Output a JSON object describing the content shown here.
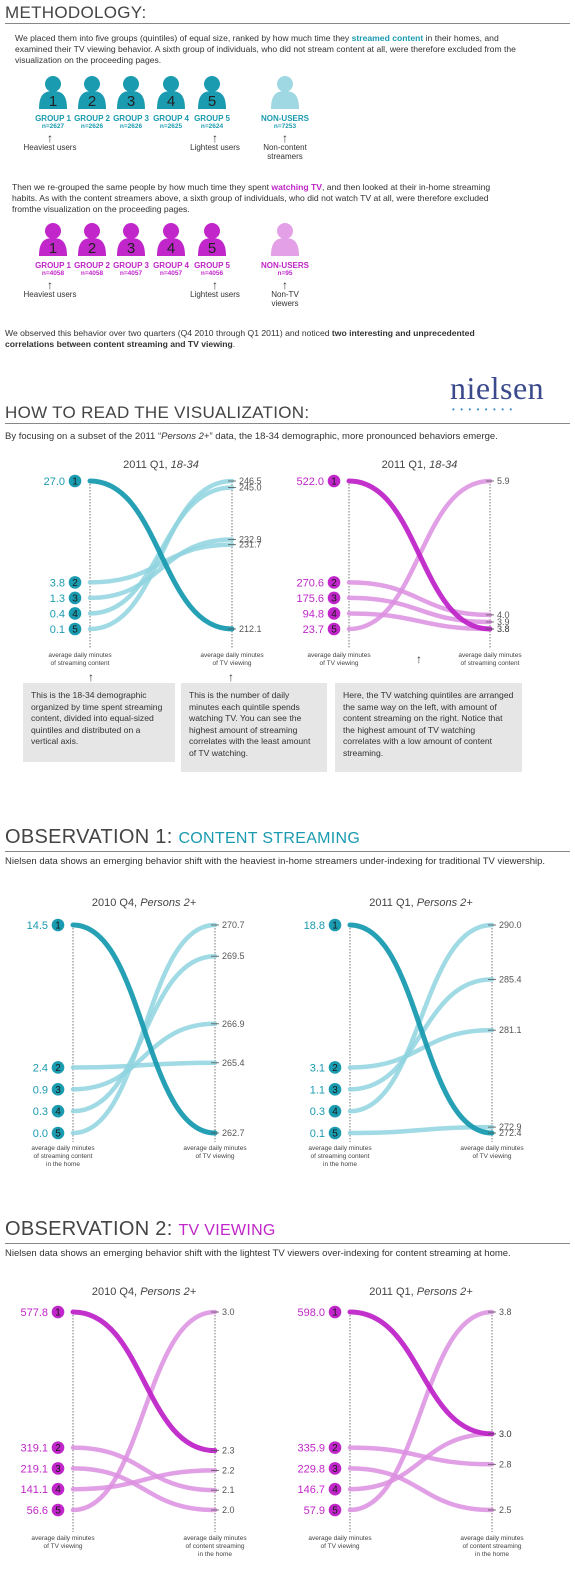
{
  "methodology": {
    "heading": "METHODOLOGY:",
    "para1_a": "We placed them into five groups (quintiles) of equal size, ranked by how much time they ",
    "para1_b": "streamed content",
    "para1_c": " in their homes, and examined their TV viewing behavior. A sixth group of individuals, who did not stream content at all, were therefore excluded from the visualization on the proceeding pages.",
    "streaming_groups": [
      {
        "num": "1",
        "label": "GROUP 1",
        "n": "n=2627"
      },
      {
        "num": "2",
        "label": "GROUP 2",
        "n": "n=2626"
      },
      {
        "num": "3",
        "label": "GROUP 3",
        "n": "n=2626"
      },
      {
        "num": "4",
        "label": "GROUP 4",
        "n": "n=2625"
      },
      {
        "num": "5",
        "label": "GROUP 5",
        "n": "n=2624"
      }
    ],
    "streaming_nonusers": {
      "label": "NON-USERS",
      "n": "n=7253"
    },
    "heaviest": "Heaviest users",
    "lightest": "Lightest users",
    "non_streamers_1": "Non-content",
    "non_streamers_2": "streamers",
    "para2_a": "Then we re-grouped the same people by how much time they spent ",
    "para2_b": "watching TV",
    "para2_c": ", and then looked at their in-home streaming habits. As with the content streamers above, a sixth group of individuals, who did not watch TV at all, were therefore excluded fromthe visualization on the proceeding pages.",
    "tv_groups": [
      {
        "num": "1",
        "label": "GROUP 1",
        "n": "n=4058"
      },
      {
        "num": "2",
        "label": "GROUP 2",
        "n": "n=4058"
      },
      {
        "num": "3",
        "label": "GROUP 3",
        "n": "n=4057"
      },
      {
        "num": "4",
        "label": "GROUP 4",
        "n": "n=4057"
      },
      {
        "num": "5",
        "label": "GROUP 5",
        "n": "n=4056"
      }
    ],
    "tv_nonusers": {
      "label": "NON-USERS",
      "n": "n=95"
    },
    "non_tv_1": "Non-TV",
    "non_tv_2": "viewers",
    "para3_a": "We observed this behavior over two quarters (Q4 2010 through Q1 2011) and noticed ",
    "para3_b": "two interesting and unprecedented correlations between content streaming and TV viewing",
    "para3_c": "."
  },
  "logo": {
    "text": "nielsen",
    "dots": "••••••••"
  },
  "how_to": {
    "heading": "HOW TO READ THE VISUALIZATION:",
    "para_a": "By focusing on a subset of the 2011 “",
    "para_b": "Persons 2+",
    "para_c": "” data, the 18-34 demographic, more pronounced behaviors emerge.",
    "box1": "This is the 18-34 demographic organized by time spent streaming content, divided into equal-sized quintiles and distributed on a vertical axis.",
    "box2": "This is the number of daily minutes each quintile spends watching TV. You can see the highest amount of streaming correlates with the least amount of TV watching.",
    "box3": "Here, the TV watching quintiles are arranged the same way on the left, with amount of content streaming on the right. Notice that the highest amount of TV watching correlates with a low amount of content streaming."
  },
  "obs1": {
    "heading_a": "OBSERVATION 1: ",
    "heading_b": "CONTENT STREAMING",
    "para": "Nielsen data shows an emerging behavior shift with the heaviest in-home streamers under-indexing for traditional TV viewership."
  },
  "obs2": {
    "heading_a": "OBSERVATION 2: ",
    "heading_b": "TV VIEWING",
    "para": "Nielsen data shows an emerging behavior shift with the lightest TV viewers over-indexing for content streaming at home."
  },
  "colors": {
    "teal": "#1a9bb0",
    "pink": "#c026c9"
  },
  "chart_data": [
    {
      "type": "slope",
      "id": "c1",
      "color": "teal",
      "title_a": "2011 Q1, ",
      "title_b": "18-34",
      "left_values": [
        27.0,
        3.8,
        1.3,
        0.4,
        0.1
      ],
      "left_labels": [
        "27.0",
        "3.8",
        "1.3",
        "0.4",
        "0.1"
      ],
      "right_values": [
        212.1,
        231.7,
        232.9,
        245.0,
        246.5
      ],
      "right_labels": [
        "212.1",
        "231.7",
        "232.9",
        "245.0",
        "246.5"
      ],
      "left_axis_label": [
        "average daily minutes",
        "of streaming content"
      ],
      "right_axis_label": [
        "average daily minutes",
        "of TV viewing"
      ]
    },
    {
      "type": "slope",
      "id": "c2",
      "color": "pink",
      "title_a": "2011 Q1, ",
      "title_b": "18-34",
      "left_values": [
        522.0,
        270.6,
        175.6,
        94.8,
        23.7
      ],
      "left_labels": [
        "522.0",
        "270.6",
        "175.6",
        "94.8",
        "23.7"
      ],
      "right_values": [
        3.8,
        4.0,
        3.9,
        3.8,
        5.9
      ],
      "right_labels": [
        "3.8",
        "4.0",
        "3.9",
        "3.8",
        "5.9"
      ],
      "right_tick_labels": [
        "5.9",
        "4.0",
        "3.9",
        "3.8"
      ],
      "left_axis_label": [
        "average daily minutes",
        "of TV viewing"
      ],
      "right_axis_label": [
        "average daily minutes",
        "of streaming content"
      ]
    },
    {
      "type": "slope",
      "id": "c3",
      "color": "teal",
      "title_a": "2010 Q4, ",
      "title_b": "Persons 2+",
      "left_values": [
        14.5,
        2.4,
        0.9,
        0.3,
        0.0
      ],
      "left_labels": [
        "14.5",
        "2.4",
        "0.9",
        "0.3",
        "0.0"
      ],
      "right_values": [
        262.7,
        265.4,
        266.9,
        269.5,
        270.7
      ],
      "right_labels": [
        "262.7",
        "265.4",
        "266.9",
        "269.5",
        "270.7"
      ],
      "left_axis_label": [
        "average daily minutes",
        "of streaming content",
        "in the home"
      ],
      "right_axis_label": [
        "average daily minutes",
        "of TV viewing"
      ]
    },
    {
      "type": "slope",
      "id": "c4",
      "color": "teal",
      "title_a": "2011 Q1, ",
      "title_b": "Persons 2+",
      "left_values": [
        18.8,
        3.1,
        1.1,
        0.3,
        0.1
      ],
      "left_labels": [
        "18.8",
        "3.1",
        "1.1",
        "0.3",
        "0.1"
      ],
      "right_values": [
        272.4,
        281.1,
        285.4,
        290.0,
        272.9
      ],
      "right_labels": [
        "272.4",
        "281.1",
        "285.4",
        "290.0",
        "272.9"
      ],
      "left_axis_label": [
        "average daily minutes",
        "of streaming content",
        "in the home"
      ],
      "right_axis_label": [
        "average daily minutes",
        "of TV viewing"
      ]
    },
    {
      "type": "slope",
      "id": "c5",
      "color": "pink",
      "title_a": "2010 Q4, ",
      "title_b": "Persons 2+",
      "left_values": [
        577.8,
        319.1,
        219.1,
        141.1,
        56.6
      ],
      "left_labels": [
        "577.8",
        "319.1",
        "219.1",
        "141.1",
        "56.6"
      ],
      "right_values": [
        2.3,
        2.1,
        2.0,
        2.2,
        3.0
      ],
      "right_labels": [
        "2.3",
        "2.1",
        "2.0",
        "2.2",
        "3.0"
      ],
      "left_axis_label": [
        "average daily minutes",
        "of TV viewing"
      ],
      "right_axis_label": [
        "average daily minutes",
        "of content streaming",
        "in the home"
      ]
    },
    {
      "type": "slope",
      "id": "c6",
      "color": "pink",
      "title_a": "2011 Q1, ",
      "title_b": "Persons 2+",
      "left_values": [
        598.0,
        335.9,
        229.8,
        146.7,
        57.9
      ],
      "left_labels": [
        "598.0",
        "335.9",
        "229.8",
        "146.7",
        "57.9"
      ],
      "right_values": [
        3.0,
        2.8,
        2.5,
        3.0,
        3.8
      ],
      "right_labels": [
        "3.0",
        "2.8",
        "2.5",
        "3.0",
        "3.8"
      ],
      "left_axis_label": [
        "average daily minutes",
        "of TV viewing"
      ],
      "right_axis_label": [
        "average daily minutes",
        "of content streaming",
        "in the home"
      ]
    }
  ]
}
